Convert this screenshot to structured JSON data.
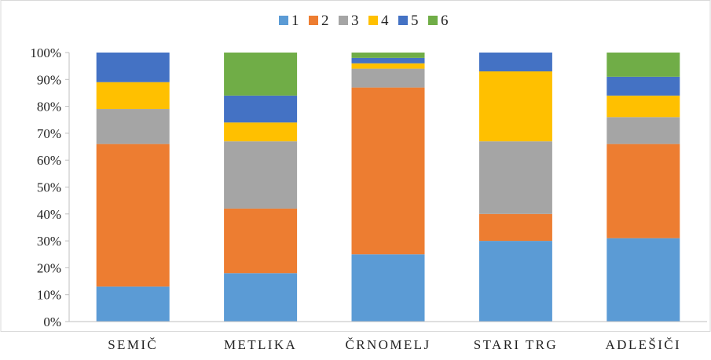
{
  "chart_data": {
    "type": "bar",
    "stacked": true,
    "percent_stacked": true,
    "categories": [
      "SEMIČ",
      "METLIKA",
      "ČRNOMELJ",
      "STARI TRG",
      "ADLEŠIČI"
    ],
    "series": [
      {
        "name": "1",
        "color": "#5B9BD5",
        "values": [
          13,
          18,
          25,
          30,
          31
        ]
      },
      {
        "name": "2",
        "color": "#ED7D31",
        "values": [
          53,
          24,
          62,
          10,
          35
        ]
      },
      {
        "name": "3",
        "color": "#A5A5A5",
        "values": [
          13,
          25,
          7,
          27,
          10
        ]
      },
      {
        "name": "4",
        "color": "#FFC000",
        "values": [
          10,
          7,
          2,
          26,
          8
        ]
      },
      {
        "name": "5",
        "color": "#4472C4",
        "values": [
          11,
          10,
          2,
          7,
          7
        ]
      },
      {
        "name": "6",
        "color": "#70AD47",
        "values": [
          0,
          16,
          2,
          0,
          9
        ]
      }
    ],
    "ylim": [
      0,
      100
    ],
    "yticks": [
      "0%",
      "10%",
      "20%",
      "30%",
      "40%",
      "50%",
      "60%",
      "70%",
      "80%",
      "90%",
      "100%"
    ],
    "legend_position": "top",
    "grid": false
  }
}
